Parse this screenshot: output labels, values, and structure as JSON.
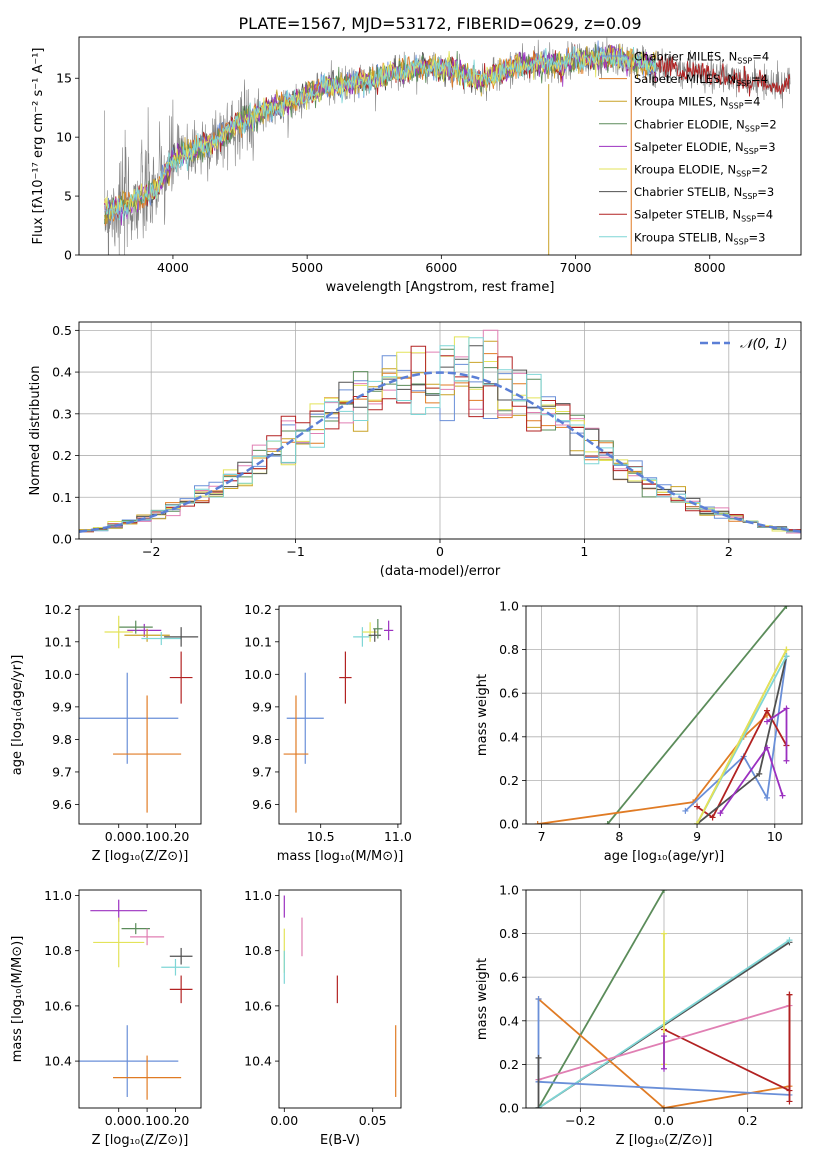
{
  "figure_title": "PLATE=1567, MJD=53172, FIBERID=0629, z=0.09",
  "series_colors": [
    "#6a8fd8",
    "#e07b24",
    "#c9a227",
    "#5b8c5a",
    "#9b30c0",
    "#e3e35a",
    "#505050",
    "#b22222",
    "#7fd6d6"
  ],
  "chart_data": [
    {
      "id": "spectrum",
      "type": "line",
      "xlabel": "wavelength [Angstrom, rest frame]",
      "ylabel": "Flux [fλ10⁻¹⁷ erg cm⁻² s⁻¹ A⁻¹]",
      "xlim": [
        3300,
        8680
      ],
      "ylim": [
        0,
        18.5
      ],
      "xticks": [
        4000,
        5000,
        6000,
        7000,
        8000
      ],
      "yticks": [
        0,
        5,
        10,
        15
      ],
      "legend_position": "upper right",
      "legend": [
        "Chabrier MILES, N_SSP=4",
        "Salpeter MILES, N_SSP=4",
        "Kroupa MILES, N_SSP=4",
        "Chabrier ELODIE, N_SSP=2",
        "Salpeter ELODIE, N_SSP=3",
        "Kroupa ELODIE, N_SSP=2",
        "Chabrier STELIB, N_SSP=3",
        "Salpeter STELIB, N_SSP=4",
        "Kroupa STELIB, N_SSP=3"
      ],
      "continuum": [
        [
          3500,
          3.7
        ],
        [
          3700,
          4.4
        ],
        [
          3900,
          5.9
        ],
        [
          4000,
          8.1
        ],
        [
          4100,
          8.6
        ],
        [
          4300,
          9.6
        ],
        [
          4500,
          11.3
        ],
        [
          4700,
          12.3
        ],
        [
          4900,
          13.1
        ],
        [
          5100,
          14.2
        ],
        [
          5300,
          14.5
        ],
        [
          5500,
          15.0
        ],
        [
          5700,
          15.6
        ],
        [
          5900,
          16.0
        ],
        [
          6100,
          15.7
        ],
        [
          6300,
          14.7
        ],
        [
          6500,
          15.8
        ],
        [
          6700,
          16.3
        ],
        [
          6900,
          16.2
        ],
        [
          7100,
          16.7
        ],
        [
          7300,
          16.7
        ],
        [
          7500,
          16.3
        ],
        [
          7700,
          15.8
        ],
        [
          7900,
          15.5
        ],
        [
          8100,
          15.1
        ],
        [
          8300,
          14.7
        ],
        [
          8500,
          14.4
        ]
      ],
      "spectrum_range": [
        3490,
        8600
      ],
      "model_range": [
        3490,
        7600
      ],
      "glitches": [
        6800,
        7415
      ]
    },
    {
      "id": "residuals",
      "type": "step",
      "xlabel": "(data-model)/error",
      "ylabel": "Normed distribution",
      "xlim": [
        -2.5,
        2.5
      ],
      "ylim": [
        0,
        0.52
      ],
      "xticks": [
        -2,
        -1,
        0,
        1,
        2
      ],
      "xticklabels": [
        "−2",
        "−1",
        "0",
        "1",
        "2"
      ],
      "yticks": [
        0,
        0.1,
        0.2,
        0.3,
        0.4,
        0.5
      ],
      "bin_width": 0.1,
      "legend": [
        "𝒩(0, 1)"
      ],
      "legend_position": "upper right",
      "grid": true
    },
    {
      "id": "age-vs-metallicity",
      "type": "errorbar",
      "xlabel": "Z [log₁₀(Z/Z⊙)]",
      "ylabel": "age  [log₁₀(age/yr)]",
      "xlim": [
        -0.14,
        0.29
      ],
      "ylim": [
        9.54,
        10.21
      ],
      "xticks": [
        0,
        0.1,
        0.2
      ],
      "yticks": [
        9.6,
        9.7,
        9.8,
        9.9,
        10.0,
        10.1,
        10.2
      ],
      "points": [
        {
          "x": 0.03,
          "y": 9.865,
          "xerr": 0.18,
          "yerr": 0.14,
          "c": 0
        },
        {
          "x": 0.1,
          "y": 9.755,
          "xerr": 0.12,
          "yerr": 0.18,
          "c": 1
        },
        {
          "x": 0.22,
          "y": 9.99,
          "xerr": 0.04,
          "yerr": 0.08,
          "c": 7
        },
        {
          "x": 0.09,
          "y": 10.135,
          "xerr": 0.06,
          "yerr": 0.02,
          "c": 4
        },
        {
          "x": 0.1,
          "y": 10.12,
          "xerr": 0.08,
          "yerr": 0.02,
          "c": 2
        },
        {
          "x": 0.15,
          "y": 10.11,
          "xerr": 0.07,
          "yerr": 0.02,
          "c": 8
        },
        {
          "x": 0.22,
          "y": 10.115,
          "xerr": 0.06,
          "yerr": 0.03,
          "c": 6
        },
        {
          "x": 0.06,
          "y": 10.145,
          "xerr": 0.06,
          "yerr": 0.02,
          "c": 3
        },
        {
          "x": 0.0,
          "y": 10.13,
          "xerr": 0.05,
          "yerr": 0.05,
          "c": 5
        }
      ]
    },
    {
      "id": "age-vs-mass",
      "type": "errorbar",
      "xlabel": "mass [log₁₀(M/M⊙)]",
      "ylabel": "",
      "xlim": [
        10.23,
        11.02
      ],
      "ylim": [
        9.54,
        10.21
      ],
      "xticks": [
        10.5,
        11.0
      ],
      "yticks": [
        9.6,
        9.7,
        9.8,
        9.9,
        10.0,
        10.1,
        10.2
      ],
      "points": [
        {
          "x": 10.4,
          "y": 9.865,
          "xerr": 0.12,
          "yerr": 0.14,
          "c": 0
        },
        {
          "x": 10.34,
          "y": 9.755,
          "xerr": 0.08,
          "yerr": 0.18,
          "c": 1
        },
        {
          "x": 10.66,
          "y": 9.99,
          "xerr": 0.04,
          "yerr": 0.08,
          "c": 7
        },
        {
          "x": 10.77,
          "y": 10.115,
          "xerr": 0.06,
          "yerr": 0.03,
          "c": 8
        },
        {
          "x": 10.82,
          "y": 10.13,
          "xerr": 0.05,
          "yerr": 0.03,
          "c": 5
        },
        {
          "x": 10.85,
          "y": 10.12,
          "xerr": 0.04,
          "yerr": 0.02,
          "c": 6
        },
        {
          "x": 10.87,
          "y": 10.14,
          "xerr": 0.03,
          "yerr": 0.03,
          "c": 3
        },
        {
          "x": 10.94,
          "y": 10.135,
          "xerr": 0.03,
          "yerr": 0.03,
          "c": 4
        }
      ]
    },
    {
      "id": "weight-vs-age",
      "type": "line",
      "xlabel": "age  [log₁₀(age/yr)]",
      "ylabel": "mass weight",
      "xlim": [
        6.8,
        10.35
      ],
      "ylim": [
        0,
        1
      ],
      "xticks": [
        7,
        8,
        9,
        10
      ],
      "yticks": [
        0,
        0.2,
        0.4,
        0.6,
        0.8,
        1.0
      ],
      "grid": true,
      "series": [
        {
          "c": 3,
          "x": [
            7.85,
            10.15
          ],
          "y": [
            0.0,
            1.0
          ]
        },
        {
          "c": 1,
          "x": [
            6.95,
            8.95,
            9.6,
            9.9
          ],
          "y": [
            0.0,
            0.1,
            0.4,
            0.5
          ]
        },
        {
          "c": 0,
          "x": [
            8.85,
            9.6,
            9.9,
            10.15
          ],
          "y": [
            0.06,
            0.31,
            0.12,
            0.77
          ]
        },
        {
          "c": 7,
          "x": [
            9.0,
            9.2,
            9.9,
            10.15
          ],
          "y": [
            0.08,
            0.03,
            0.52,
            0.36
          ]
        },
        {
          "c": 6,
          "x": [
            9.0,
            9.8,
            10.15
          ],
          "y": [
            0.0,
            0.23,
            0.77
          ]
        },
        {
          "c": 8,
          "x": [
            9.0,
            10.15
          ],
          "y": [
            0.0,
            0.77
          ]
        },
        {
          "c": 2,
          "x": [
            9.0,
            10.15
          ],
          "y": [
            0.0,
            0.8
          ]
        },
        {
          "c": 5,
          "x": [
            9.0,
            10.15
          ],
          "y": [
            0.0,
            0.8
          ]
        },
        {
          "c": 4,
          "x": [
            9.9,
            10.15,
            10.15
          ],
          "y": [
            0.47,
            0.53,
            0.29
          ]
        },
        {
          "c": 4,
          "x": [
            9.3,
            9.9,
            10.1
          ],
          "y": [
            0.05,
            0.35,
            0.13
          ]
        }
      ]
    },
    {
      "id": "mass-vs-metallicity",
      "type": "errorbar",
      "xlabel": "Z [log₁₀(Z/Z⊙)]",
      "ylabel": "mass [log₁₀(M/M⊙)]",
      "xlim": [
        -0.14,
        0.29
      ],
      "ylim": [
        10.23,
        11.02
      ],
      "xticks": [
        0,
        0.1,
        0.2
      ],
      "yticks": [
        10.4,
        10.6,
        10.8,
        11.0
      ],
      "points": [
        {
          "x": 0.03,
          "y": 10.4,
          "xerr": 0.18,
          "yerr": 0.13,
          "c": 0
        },
        {
          "x": 0.1,
          "y": 10.34,
          "xerr": 0.12,
          "yerr": 0.08,
          "c": 1
        },
        {
          "x": 0.22,
          "y": 10.66,
          "xerr": 0.04,
          "yerr": 0.05,
          "c": 7
        },
        {
          "x": 0.0,
          "y": 10.945,
          "xerr": 0.1,
          "yerr": 0.04,
          "c": 4
        },
        {
          "x": 0.06,
          "y": 10.88,
          "xerr": 0.05,
          "yerr": 0.02,
          "c": 3
        },
        {
          "x": 0.1,
          "y": 10.85,
          "xerr": 0.06,
          "yerr": 0.03,
          "c": 4,
          "alt": "#e07fb3"
        },
        {
          "x": 0.0,
          "y": 10.83,
          "xerr": 0.09,
          "yerr": 0.09,
          "c": 5
        },
        {
          "x": 0.22,
          "y": 10.78,
          "xerr": 0.04,
          "yerr": 0.03,
          "c": 6
        },
        {
          "x": 0.2,
          "y": 10.74,
          "xerr": 0.05,
          "yerr": 0.03,
          "c": 8
        }
      ]
    },
    {
      "id": "mass-vs-extinction",
      "type": "errorbar",
      "xlabel": "E(B-V)",
      "ylabel": "",
      "xlim": [
        -0.003,
        0.066
      ],
      "ylim": [
        10.23,
        11.02
      ],
      "xticks": [
        0.0,
        0.05
      ],
      "xticklabels": [
        "0.00",
        "0.05"
      ],
      "yticks": [
        10.4,
        10.6,
        10.8,
        11.0
      ],
      "points": [
        {
          "x": 0.0,
          "y": 10.96,
          "xerr": 0,
          "yerr": 0.04,
          "c": 4
        },
        {
          "x": 0.0,
          "y": 10.8,
          "xerr": 0,
          "yerr": 0.08,
          "c": 5
        },
        {
          "x": 0.0,
          "y": 10.74,
          "xerr": 0,
          "yerr": 0.06,
          "c": 8
        },
        {
          "x": 0.01,
          "y": 10.85,
          "xerr": 0,
          "yerr": 0.07,
          "c": 4,
          "alt": "#e07fb3"
        },
        {
          "x": 0.03,
          "y": 10.66,
          "xerr": 0,
          "yerr": 0.05,
          "c": 7
        },
        {
          "x": 0.063,
          "y": 10.4,
          "xerr": 0,
          "yerr": 0.13,
          "c": 1
        }
      ]
    },
    {
      "id": "weight-vs-metallicity",
      "type": "line",
      "xlabel": "Z [log₁₀(Z/Z⊙)]",
      "ylabel": "mass weight",
      "xlim": [
        -0.33,
        0.33
      ],
      "ylim": [
        0,
        1
      ],
      "xticks": [
        -0.2,
        0.0,
        0.2
      ],
      "xticklabels": [
        "−0.2",
        "0.0",
        "0.2"
      ],
      "yticks": [
        0,
        0.2,
        0.4,
        0.6,
        0.8,
        1.0
      ],
      "grid": true,
      "series": [
        {
          "c": 3,
          "x": [
            -0.3,
            0.0
          ],
          "y": [
            0.0,
            1.0
          ]
        },
        {
          "c": 6,
          "x": [
            -0.3,
            0.3
          ],
          "y": [
            0.0,
            0.76
          ]
        },
        {
          "c": 8,
          "x": [
            -0.3,
            0.3
          ],
          "y": [
            0.0,
            0.77
          ]
        },
        {
          "c": 1,
          "x": [
            -0.3,
            0.0,
            0.3
          ],
          "y": [
            0.5,
            0.0,
            0.1
          ]
        },
        {
          "c": 0,
          "x": [
            -0.3,
            0.3
          ],
          "y": [
            0.12,
            0.06
          ]
        },
        {
          "c": 7,
          "x": [
            0.0,
            0.3,
            0.3
          ],
          "y": [
            0.36,
            0.08,
            0.52
          ]
        },
        {
          "c": 4,
          "x": [
            -0.3,
            0.3
          ],
          "y": [
            0.13,
            0.47
          ],
          "alt": "#e07fb3"
        },
        {
          "c": 5,
          "x": [
            0.0,
            0.0
          ],
          "y": [
            0.8,
            0.2
          ]
        },
        {
          "c": 4,
          "x": [
            0.0,
            0.0
          ],
          "y": [
            0.33,
            0.18
          ]
        },
        {
          "c": 0,
          "x": [
            -0.3,
            -0.3
          ],
          "y": [
            0.5,
            0.12
          ]
        },
        {
          "c": 6,
          "x": [
            -0.3,
            -0.3
          ],
          "y": [
            0.23,
            0.0
          ]
        },
        {
          "c": 7,
          "x": [
            0.3,
            0.3
          ],
          "y": [
            0.52,
            0.03
          ]
        }
      ]
    }
  ]
}
